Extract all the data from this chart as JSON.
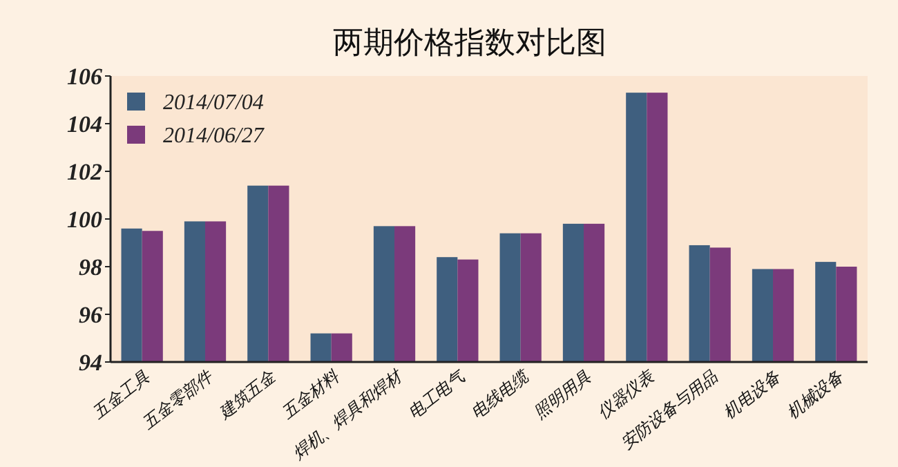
{
  "chart_data": {
    "type": "bar",
    "title": "两期价格指数对比图",
    "categories": [
      "五金工具",
      "五金零部件",
      "建筑五金",
      "五金材料",
      "焊机、焊具和焊材",
      "电工电气",
      "电线电缆",
      "照明用具",
      "仪器仪表",
      "安防设备与用品",
      "机电设备",
      "机械设备"
    ],
    "series": [
      {
        "name": "2014/07/04",
        "color": "#3f5f7f",
        "values": [
          99.6,
          99.9,
          101.4,
          95.2,
          99.7,
          98.4,
          99.4,
          99.8,
          105.3,
          98.9,
          97.9,
          98.2
        ]
      },
      {
        "name": "2014/06/27",
        "color": "#7b3a7b",
        "values": [
          99.5,
          99.9,
          101.4,
          95.2,
          99.7,
          98.3,
          99.4,
          99.8,
          105.3,
          98.8,
          97.9,
          98.0
        ]
      }
    ],
    "ylim": [
      94,
      106
    ],
    "yticks": [
      94,
      96,
      98,
      100,
      102,
      104,
      106
    ],
    "grid": false,
    "legend": "top left"
  }
}
